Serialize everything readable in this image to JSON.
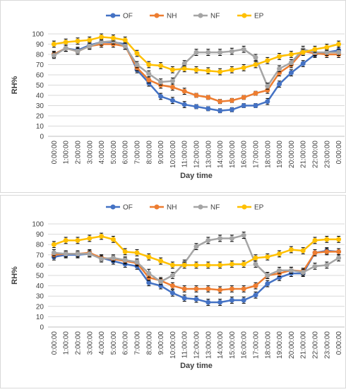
{
  "chart_data": [
    {
      "type": "line",
      "xlabel": "Day time",
      "ylabel": "RH%",
      "categories": [
        "0:00:00",
        "1:00:00",
        "2:00:00",
        "3:00:00",
        "4:00:00",
        "5:00:00",
        "6:00:00",
        "7:00:00",
        "8:00:00",
        "9:00:00",
        "10:00:00",
        "11:00:00",
        "12:00:00",
        "13:00:00",
        "14:00:00",
        "15:00:00",
        "16:00:00",
        "17:00:00",
        "18:00:00",
        "19:00:00",
        "20:00:00",
        "21:00:00",
        "22:00:00",
        "23:00:00",
        "0:00:00"
      ],
      "ylim": [
        0,
        100
      ],
      "yticks": [
        0,
        10,
        20,
        30,
        40,
        50,
        60,
        70,
        80,
        90,
        100
      ],
      "grid": true,
      "legend": "top",
      "series": [
        {
          "name": "OF",
          "color": "#4472c4",
          "values": [
            80,
            86,
            84,
            89,
            92,
            92,
            90,
            65,
            52,
            39,
            35,
            31,
            29,
            27,
            25,
            26,
            30,
            30,
            34,
            51,
            62,
            71,
            80,
            82,
            84
          ],
          "errors": [
            3,
            3,
            3,
            3,
            3,
            3,
            3,
            3,
            3,
            3,
            3,
            3,
            2,
            2,
            2,
            2,
            2,
            2,
            3,
            3,
            3,
            3,
            3,
            3,
            3
          ]
        },
        {
          "name": "NH",
          "color": "#ed7d31",
          "values": [
            80,
            86,
            83,
            88,
            90,
            90,
            88,
            67,
            55,
            50,
            48,
            44,
            40,
            38,
            34,
            35,
            38,
            42,
            45,
            62,
            70,
            83,
            81,
            80,
            80
          ],
          "errors": [
            3,
            3,
            3,
            3,
            3,
            3,
            3,
            3,
            3,
            3,
            3,
            3,
            2,
            2,
            2,
            2,
            2,
            2,
            3,
            3,
            3,
            3,
            3,
            3,
            3
          ]
        },
        {
          "name": "NF",
          "color": "#a5a5a5",
          "values": [
            79,
            86,
            83,
            88,
            92,
            93,
            88,
            70,
            61,
            53,
            54,
            71,
            82,
            82,
            82,
            83,
            85,
            77,
            49,
            66,
            72,
            85,
            82,
            82,
            82
          ],
          "errors": [
            3,
            3,
            3,
            3,
            3,
            3,
            3,
            3,
            3,
            3,
            3,
            3,
            3,
            3,
            3,
            3,
            3,
            3,
            3,
            3,
            3,
            3,
            3,
            3,
            3
          ]
        },
        {
          "name": "EP",
          "color": "#ffc000",
          "values": [
            90,
            92,
            93,
            94,
            97,
            96,
            94,
            81,
            70,
            69,
            65,
            66,
            65,
            64,
            63,
            65,
            67,
            70,
            74,
            78,
            80,
            82,
            85,
            87,
            90
          ],
          "errors": [
            3,
            3,
            3,
            3,
            3,
            3,
            3,
            3,
            3,
            3,
            3,
            3,
            3,
            3,
            3,
            3,
            3,
            3,
            3,
            3,
            3,
            3,
            3,
            3,
            3
          ]
        }
      ]
    },
    {
      "type": "line",
      "xlabel": "Day time",
      "ylabel": "RH%",
      "categories": [
        "0:00:00",
        "1:00:00",
        "2:00:00",
        "3:00:00",
        "4:00:00",
        "5:00:00",
        "6:00:00",
        "7:00:00",
        "8:00:00",
        "9:00:00",
        "10:00:00",
        "11:00:00",
        "12:00:00",
        "13:00:00",
        "14:00:00",
        "15:00:00",
        "16:00:00",
        "17:00:00",
        "18:00:00",
        "19:00:00",
        "20:00:00",
        "21:00:00",
        "22:00:00",
        "23:00:00",
        "0:00:00"
      ],
      "ylim": [
        0,
        100
      ],
      "yticks": [
        0,
        10,
        20,
        30,
        40,
        50,
        60,
        70,
        80,
        90,
        100
      ],
      "grid": true,
      "legend": "top",
      "series": [
        {
          "name": "OF",
          "color": "#4472c4",
          "values": [
            68,
            70,
            70,
            71,
            67,
            64,
            61,
            59,
            43,
            40,
            33,
            28,
            27,
            24,
            24,
            26,
            26,
            31,
            42,
            48,
            52,
            52,
            72,
            74,
            73
          ],
          "errors": [
            3,
            3,
            3,
            3,
            3,
            3,
            3,
            3,
            3,
            3,
            3,
            3,
            3,
            3,
            3,
            3,
            3,
            3,
            3,
            3,
            3,
            3,
            3,
            3,
            3
          ]
        },
        {
          "name": "NH",
          "color": "#ed7d31",
          "values": [
            70,
            71,
            71,
            72,
            67,
            66,
            64,
            62,
            48,
            45,
            40,
            37,
            37,
            37,
            36,
            37,
            37,
            40,
            50,
            52,
            55,
            54,
            72,
            73,
            73
          ],
          "errors": [
            3,
            3,
            3,
            3,
            3,
            3,
            3,
            3,
            3,
            3,
            3,
            3,
            3,
            3,
            3,
            3,
            3,
            3,
            3,
            3,
            3,
            3,
            3,
            3,
            3
          ]
        },
        {
          "name": "NF",
          "color": "#a5a5a5",
          "values": [
            72,
            71,
            71,
            71,
            66,
            67,
            65,
            63,
            52,
            44,
            50,
            62,
            78,
            84,
            86,
            86,
            89,
            61,
            50,
            55,
            55,
            53,
            59,
            60,
            67
          ],
          "errors": [
            3,
            3,
            3,
            3,
            3,
            3,
            3,
            3,
            4,
            3,
            3,
            3,
            3,
            3,
            3,
            3,
            3,
            3,
            3,
            3,
            3,
            3,
            3,
            3,
            3
          ]
        },
        {
          "name": "EP",
          "color": "#ffc000",
          "values": [
            80,
            84,
            84,
            86,
            88,
            85,
            73,
            72,
            68,
            64,
            60,
            60,
            60,
            60,
            60,
            61,
            61,
            67,
            68,
            71,
            75,
            74,
            84,
            85,
            85
          ],
          "errors": [
            3,
            3,
            3,
            3,
            3,
            3,
            3,
            3,
            3,
            3,
            3,
            3,
            3,
            3,
            3,
            3,
            3,
            3,
            3,
            3,
            3,
            3,
            3,
            3,
            3
          ]
        }
      ]
    }
  ]
}
